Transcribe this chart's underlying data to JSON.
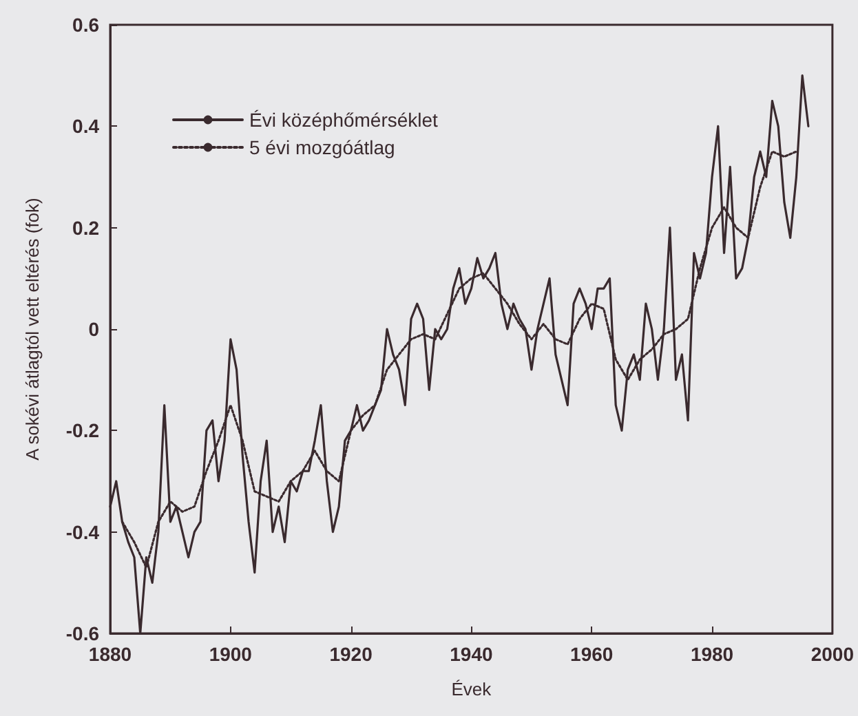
{
  "chart_data": {
    "type": "line",
    "xlabel": "Évek",
    "ylabel": "A sokévi átlagtól vett eltérés (fok)",
    "xlim": [
      1880,
      2000
    ],
    "xticks": [
      1880,
      1900,
      1920,
      1940,
      1960,
      1980,
      2000
    ],
    "ylim": [
      -0.6,
      0.6
    ],
    "yticks": [
      -0.6,
      -0.4,
      -0.2,
      0,
      0.2,
      0.4,
      0.6
    ],
    "grid": false,
    "legend": "top left",
    "marker": "none",
    "series": [
      {
        "name": "Évi középhőmérséklet",
        "color": "#3a2a2e",
        "line_style": "solid",
        "x": [
          1880,
          1881,
          1882,
          1883,
          1884,
          1885,
          1886,
          1887,
          1888,
          1889,
          1890,
          1891,
          1892,
          1893,
          1894,
          1895,
          1896,
          1897,
          1898,
          1899,
          1900,
          1901,
          1902,
          1903,
          1904,
          1905,
          1906,
          1907,
          1908,
          1909,
          1910,
          1911,
          1912,
          1913,
          1914,
          1915,
          1916,
          1917,
          1918,
          1919,
          1920,
          1921,
          1922,
          1923,
          1924,
          1925,
          1926,
          1927,
          1928,
          1929,
          1930,
          1931,
          1932,
          1933,
          1934,
          1935,
          1936,
          1937,
          1938,
          1939,
          1940,
          1941,
          1942,
          1943,
          1944,
          1945,
          1946,
          1947,
          1948,
          1949,
          1950,
          1951,
          1952,
          1953,
          1954,
          1955,
          1956,
          1957,
          1958,
          1959,
          1960,
          1961,
          1962,
          1963,
          1964,
          1965,
          1966,
          1967,
          1968,
          1969,
          1970,
          1971,
          1972,
          1973,
          1974,
          1975,
          1976,
          1977,
          1978,
          1979,
          1980,
          1981,
          1982,
          1983,
          1984,
          1985,
          1986,
          1987,
          1988,
          1989,
          1990,
          1991,
          1992,
          1993,
          1994,
          1995,
          1996
        ],
        "values": [
          -0.35,
          -0.3,
          -0.38,
          -0.42,
          -0.45,
          -0.6,
          -0.45,
          -0.5,
          -0.4,
          -0.15,
          -0.38,
          -0.35,
          -0.4,
          -0.45,
          -0.4,
          -0.38,
          -0.2,
          -0.18,
          -0.3,
          -0.22,
          -0.02,
          -0.08,
          -0.25,
          -0.38,
          -0.48,
          -0.3,
          -0.22,
          -0.4,
          -0.35,
          -0.42,
          -0.3,
          -0.32,
          -0.28,
          -0.28,
          -0.22,
          -0.15,
          -0.3,
          -0.4,
          -0.35,
          -0.22,
          -0.2,
          -0.15,
          -0.2,
          -0.18,
          -0.15,
          -0.12,
          0.0,
          -0.05,
          -0.08,
          -0.15,
          0.02,
          0.05,
          0.02,
          -0.12,
          0.0,
          -0.02,
          0.0,
          0.08,
          0.12,
          0.05,
          0.08,
          0.14,
          0.1,
          0.12,
          0.15,
          0.05,
          0.0,
          0.05,
          0.02,
          0.0,
          -0.08,
          0.0,
          0.05,
          0.1,
          -0.05,
          -0.1,
          -0.15,
          0.05,
          0.08,
          0.05,
          0.0,
          0.08,
          0.08,
          0.1,
          -0.15,
          -0.2,
          -0.08,
          -0.05,
          -0.1,
          0.05,
          0.0,
          -0.1,
          0.0,
          0.2,
          -0.1,
          -0.05,
          -0.18,
          0.15,
          0.1,
          0.15,
          0.3,
          0.4,
          0.15,
          0.32,
          0.1,
          0.12,
          0.18,
          0.3,
          0.35,
          0.3,
          0.45,
          0.4,
          0.25,
          0.18,
          0.3,
          0.5,
          0.4
        ]
      },
      {
        "name": "5 évi mozgóátlag",
        "color": "#3a2a2e",
        "line_style": "dotted",
        "x": [
          1882,
          1884,
          1886,
          1888,
          1890,
          1892,
          1894,
          1896,
          1898,
          1900,
          1902,
          1904,
          1906,
          1908,
          1910,
          1912,
          1914,
          1916,
          1918,
          1920,
          1922,
          1924,
          1926,
          1928,
          1930,
          1932,
          1934,
          1936,
          1938,
          1940,
          1942,
          1944,
          1946,
          1948,
          1950,
          1952,
          1954,
          1956,
          1958,
          1960,
          1962,
          1964,
          1966,
          1968,
          1970,
          1972,
          1974,
          1976,
          1978,
          1980,
          1982,
          1984,
          1986,
          1988,
          1990,
          1992,
          1994
        ],
        "values": [
          -0.38,
          -0.42,
          -0.47,
          -0.38,
          -0.34,
          -0.36,
          -0.35,
          -0.28,
          -0.22,
          -0.15,
          -0.22,
          -0.32,
          -0.33,
          -0.34,
          -0.3,
          -0.28,
          -0.24,
          -0.28,
          -0.3,
          -0.2,
          -0.17,
          -0.15,
          -0.08,
          -0.05,
          -0.02,
          -0.01,
          -0.02,
          0.03,
          0.08,
          0.1,
          0.11,
          0.08,
          0.05,
          0.01,
          -0.02,
          0.01,
          -0.02,
          -0.03,
          0.02,
          0.05,
          0.04,
          -0.06,
          -0.1,
          -0.06,
          -0.04,
          -0.01,
          0.0,
          0.02,
          0.12,
          0.2,
          0.24,
          0.2,
          0.18,
          0.28,
          0.35,
          0.34,
          0.35
        ]
      }
    ]
  }
}
